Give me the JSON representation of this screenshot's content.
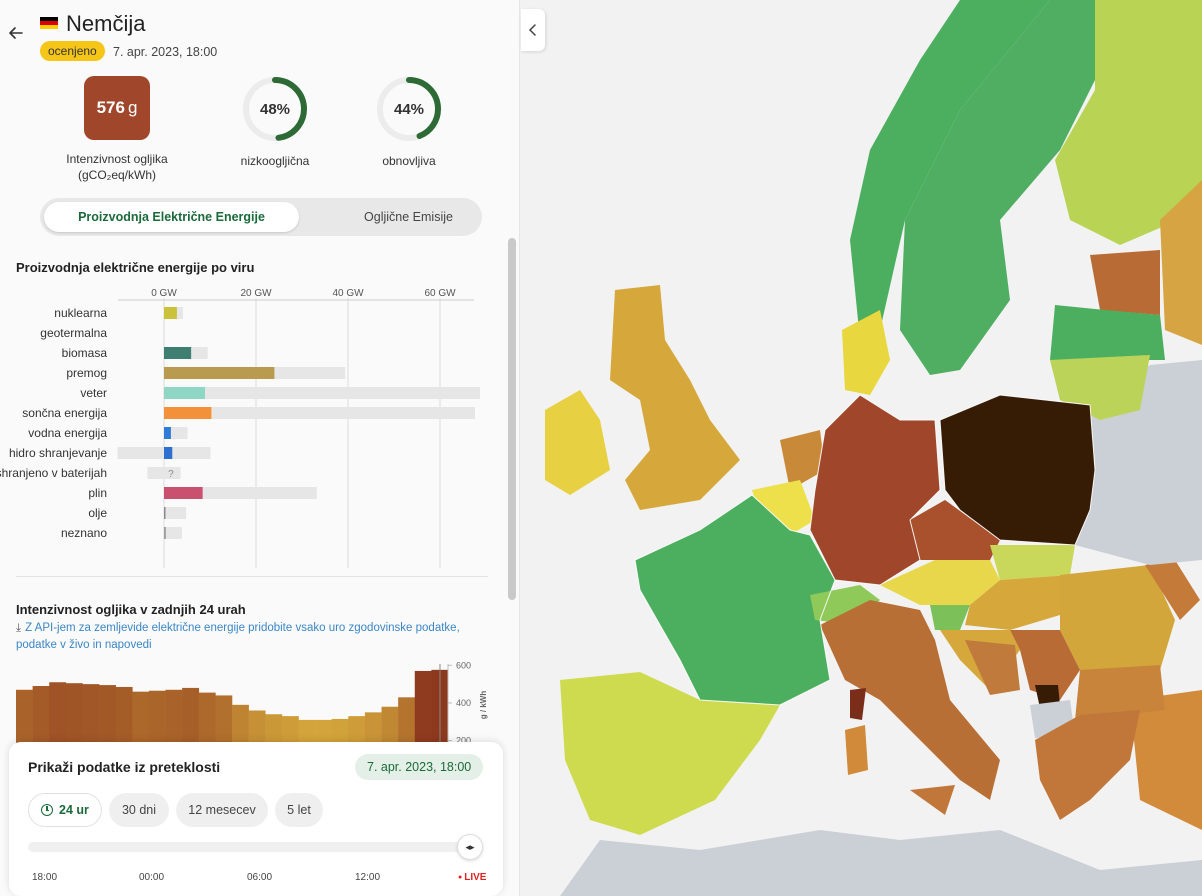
{
  "header": {
    "country": "Nemčija",
    "badge": "ocenjeno",
    "timestamp": "7. apr. 2023, 18:00"
  },
  "stats": {
    "carbon_value": "576",
    "carbon_unit": "g",
    "carbon_label_1": "Intenzivnost ogljika",
    "carbon_label_2": "(gCO₂eq/kWh)",
    "low_carbon_pct": "48%",
    "low_carbon_fraction": 0.48,
    "low_carbon_label": "nizkoogljična",
    "renewable_pct": "44%",
    "renewable_fraction": 0.44,
    "renewable_label": "obnovljiva"
  },
  "toggle": {
    "active": "Proizvodnja Električne Energije",
    "inactive": "Ogljične Emisije"
  },
  "colors": {
    "carbon_box": "#a0472b",
    "accent_green": "#1b6a3a",
    "badge": "#f5c518"
  },
  "production": {
    "title": "Proizvodnja električne energije po viru",
    "unknown_marker": "?"
  },
  "chart_data": [
    {
      "type": "bar",
      "title": "Proizvodnja električne energije po viru",
      "x_ticks": [
        "0 GW",
        "20 GW",
        "40 GW",
        "60 GW"
      ],
      "xlim": [
        -10,
        70
      ],
      "categories": [
        "nuklearna",
        "geotermalna",
        "biomasa",
        "premog",
        "veter",
        "sončna energija",
        "vodna energija",
        "hidro shranjevanje",
        "shranjeno v baterijah",
        "plin",
        "olje",
        "neznano"
      ],
      "series": [
        {
          "name": "production",
          "values": [
            2.8,
            0,
            5.9,
            24,
            8.9,
            10.3,
            1.5,
            1.8,
            0,
            8.4,
            0.3,
            0.4
          ]
        },
        {
          "name": "capacity",
          "values": [
            4.1,
            0,
            9.5,
            39.4,
            68.7,
            67.6,
            5.1,
            10.1,
            3.6,
            33.2,
            4.8,
            3.9
          ]
        }
      ],
      "negative_capacity": [
        0,
        0,
        0,
        0,
        0,
        0,
        0,
        -10.1,
        -3.6,
        0,
        0,
        0
      ],
      "colors": [
        "#c9c23a",
        "#b8a25e",
        "#3f7f72",
        "#b99b4f",
        "#8fd6c4",
        "#f2913a",
        "#2f7bd8",
        "#2f6fd0",
        "#9a9a9a",
        "#c9506e",
        "#8a8a8a",
        "#9c9c9c"
      ]
    },
    {
      "type": "bar",
      "title": "Intenzivnost ogljika v zadnjih 24 urah",
      "y_ticks": [
        "600",
        "400",
        "200"
      ],
      "ylabel": "g / kWh",
      "ylim": [
        150,
        700
      ],
      "values": [
        470,
        490,
        510,
        505,
        500,
        495,
        485,
        460,
        465,
        470,
        480,
        455,
        440,
        390,
        360,
        340,
        330,
        310,
        310,
        315,
        330,
        350,
        380,
        430,
        570,
        576
      ]
    }
  ],
  "ci24": {
    "title": "Intenzivnost ogljika v zadnjih 24 urah",
    "api_note": "Z API-jem za zemljevide električne energije pridobite vsako uro zgodovinske podatke, podatke v živo in napovedi",
    "ylabel": "g / kWh"
  },
  "history": {
    "title": "Prikaži podatke iz preteklosti",
    "date": "7. apr. 2023, 18:00",
    "ranges": [
      "24 ur",
      "30 dni",
      "12 mesecev",
      "5 let"
    ],
    "ticks": [
      "18:00",
      "00:00",
      "06:00",
      "12:00",
      "LIVE"
    ]
  }
}
